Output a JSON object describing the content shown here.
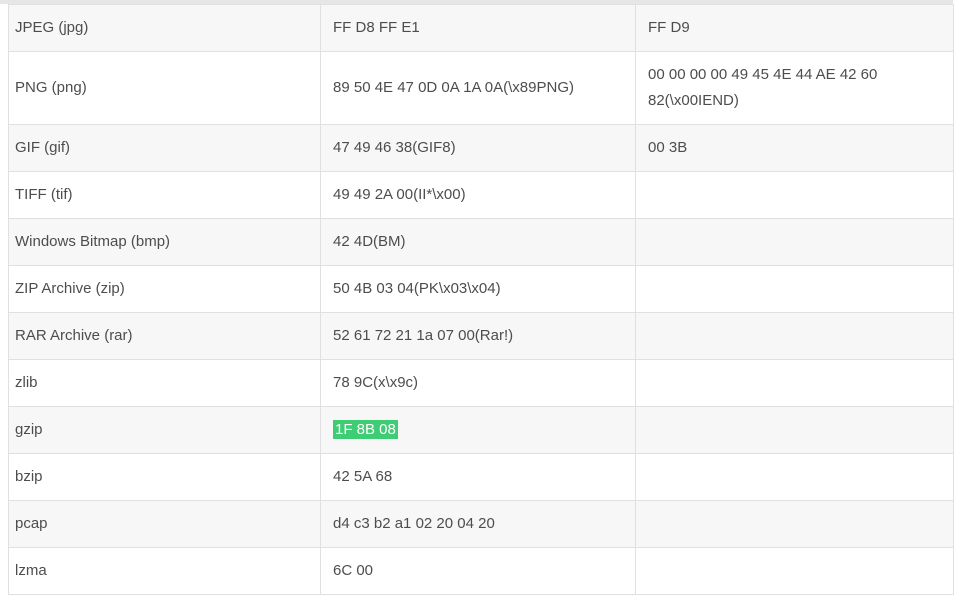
{
  "colors": {
    "highlight_bg": "#3ecd74",
    "highlight_text": "#ffffff",
    "row_alt_bg": "#f7f7f7",
    "border": "#e0e0e0",
    "text": "#4d4d4d"
  },
  "table": {
    "rows": [
      {
        "format": "JPEG (jpg)",
        "header": "FF D8 FF E1",
        "trailer": "FF D9",
        "header_highlighted": false
      },
      {
        "format": "PNG (png)",
        "header": "89 50 4E 47 0D 0A 1A 0A(\\x89PNG)",
        "trailer": "00 00 00 00 49 45 4E 44 AE 42 60 82(\\x00IEND)",
        "header_highlighted": false
      },
      {
        "format": "GIF (gif)",
        "header": "47 49 46 38(GIF8)",
        "trailer": "00 3B",
        "header_highlighted": false
      },
      {
        "format": "TIFF (tif)",
        "header": "49 49 2A 00(II*\\x00)",
        "trailer": "",
        "header_highlighted": false
      },
      {
        "format": "Windows Bitmap (bmp)",
        "header": "42 4D(BM)",
        "trailer": "",
        "header_highlighted": false
      },
      {
        "format": "ZIP Archive (zip)",
        "header": "50 4B 03 04(PK\\x03\\x04)",
        "trailer": "",
        "header_highlighted": false
      },
      {
        "format": "RAR Archive (rar)",
        "header": "52 61 72 21 1a 07 00(Rar!)",
        "trailer": "",
        "header_highlighted": false
      },
      {
        "format": "zlib",
        "header": "78 9C(x\\x9c)",
        "trailer": "",
        "header_highlighted": false
      },
      {
        "format": "gzip",
        "header": "1F 8B 08",
        "trailer": "",
        "header_highlighted": true
      },
      {
        "format": "bzip",
        "header": "42 5A 68",
        "trailer": "",
        "header_highlighted": false
      },
      {
        "format": "pcap",
        "header": "d4 c3 b2 a1 02 20 04 20",
        "trailer": "",
        "header_highlighted": false
      },
      {
        "format": "lzma",
        "header": "6C 00",
        "trailer": "",
        "header_highlighted": false
      }
    ]
  }
}
